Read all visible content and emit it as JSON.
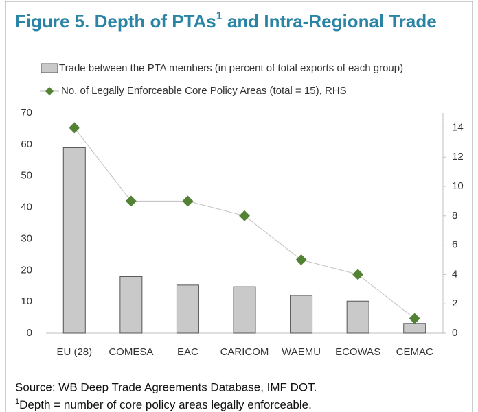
{
  "chart_data": {
    "type": "bar_line",
    "title": "Figure 5. Depth of PTAs",
    "title_superscript": "1",
    "title_rest": " and Intra-Regional Trade",
    "categories": [
      "EU (28)",
      "COMESA",
      "EAC",
      "CARICOM",
      "WAEMU",
      "ECOWAS",
      "CEMAC"
    ],
    "series": [
      {
        "name": "Trade between the PTA members (in percent of total exports of each group)",
        "type": "bar",
        "color": "#c9c9c9",
        "values": [
          59,
          18,
          15.3,
          14.8,
          12,
          10.2,
          3.1
        ]
      },
      {
        "name": "No. of Legally Enforceable Core Policy Areas (total = 15), RHS",
        "type": "line",
        "axis": "y2",
        "color": "#548235",
        "values": [
          14,
          9,
          9,
          8,
          5,
          4,
          1
        ]
      }
    ],
    "ylim": [
      0,
      70
    ],
    "yticks": [
      0,
      10,
      20,
      30,
      40,
      50,
      60,
      70
    ],
    "y2lim": [
      0,
      15
    ],
    "y2ticks": [
      0,
      2,
      4,
      6,
      8,
      10,
      12,
      14
    ],
    "grid": false,
    "source": "Source: WB Deep Trade Agreements Database, IMF DOT.",
    "footnote_marker": "1",
    "footnote": "Depth = number of core policy areas legally enforceable."
  }
}
